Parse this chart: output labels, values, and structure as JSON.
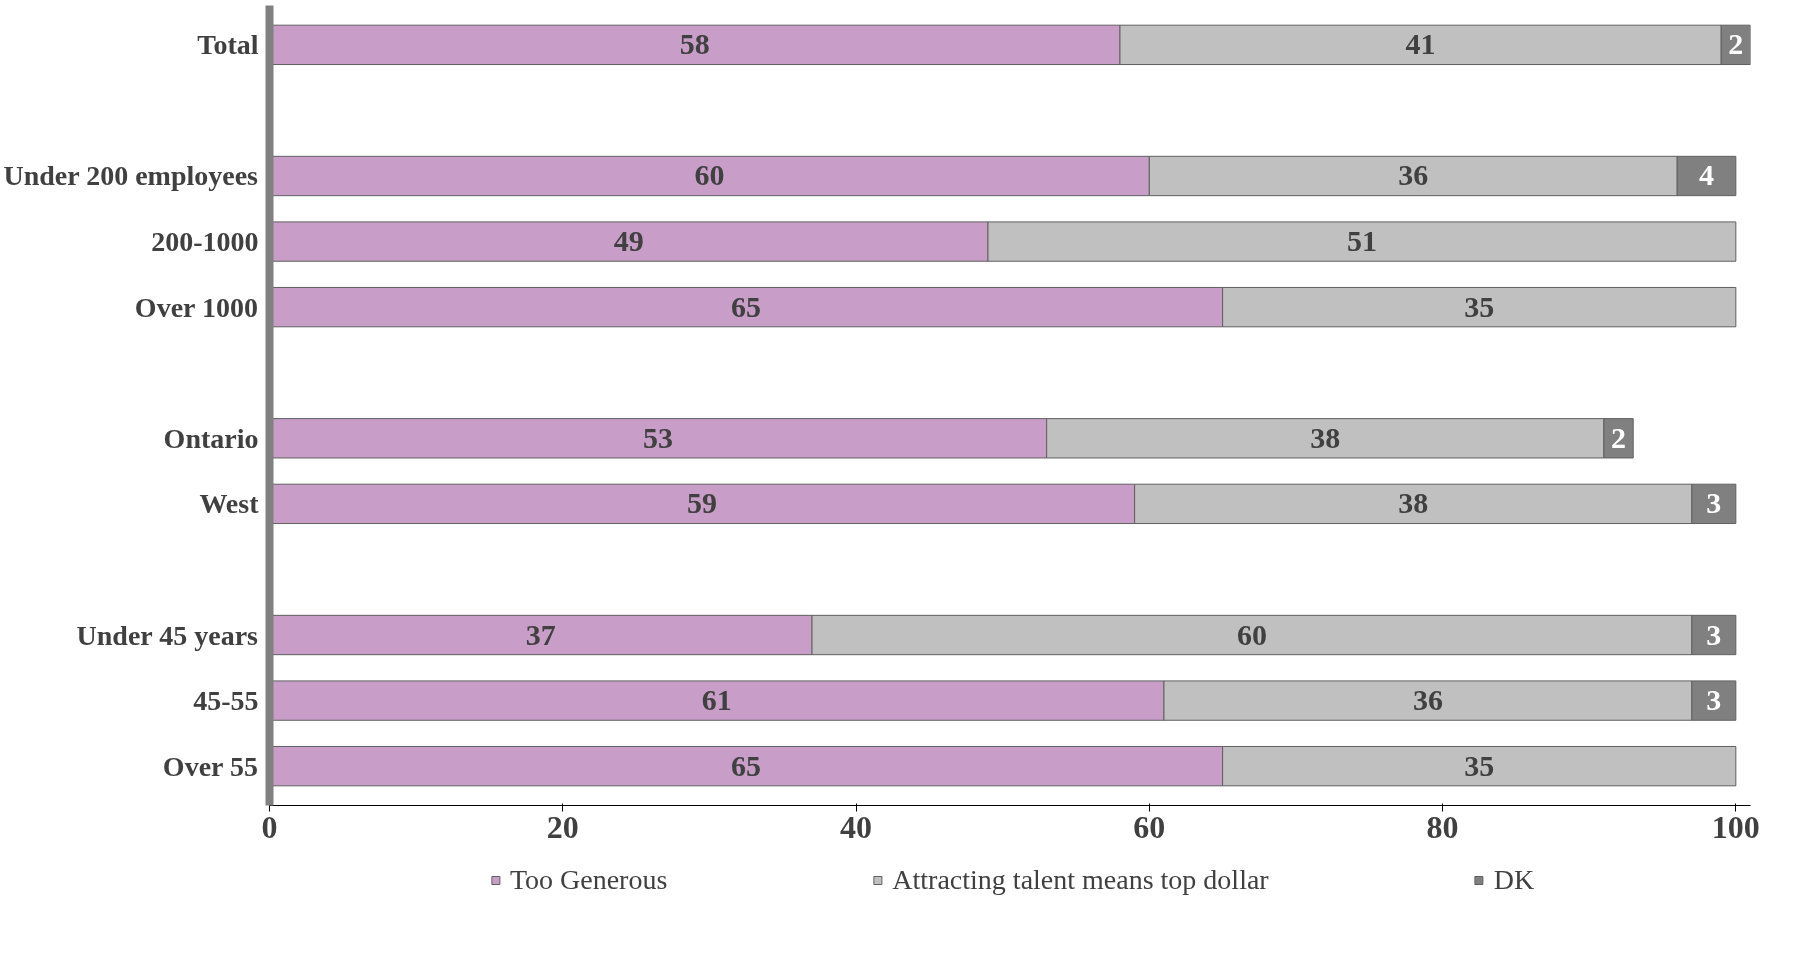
{
  "chart_data": {
    "type": "bar",
    "orientation": "horizontal",
    "stacked": true,
    "data_labels": true,
    "grid": false,
    "legend": "bottom",
    "categories": [
      "Total",
      null,
      "Under 200 employees",
      "200-1000",
      "Over 1000",
      null,
      "Ontario",
      "West",
      null,
      "Under 45 years",
      "45-55",
      "Over 55"
    ],
    "series": [
      {
        "name": "Too Generous",
        "color": "#c89ec8",
        "values": [
          58,
          null,
          60,
          49,
          65,
          null,
          53,
          59,
          null,
          37,
          61,
          65
        ]
      },
      {
        "name": "Attracting talent means top dollar",
        "color": "#c0c0c0",
        "values": [
          41,
          null,
          36,
          51,
          35,
          null,
          38,
          38,
          null,
          60,
          36,
          35
        ]
      },
      {
        "name": "DK",
        "color": "#808080",
        "values": [
          2,
          null,
          4,
          null,
          null,
          null,
          2,
          3,
          null,
          3,
          3,
          null
        ]
      }
    ],
    "xlim": [
      0,
      101
    ],
    "xticks": [
      0,
      20,
      40,
      60,
      80,
      100
    ]
  }
}
